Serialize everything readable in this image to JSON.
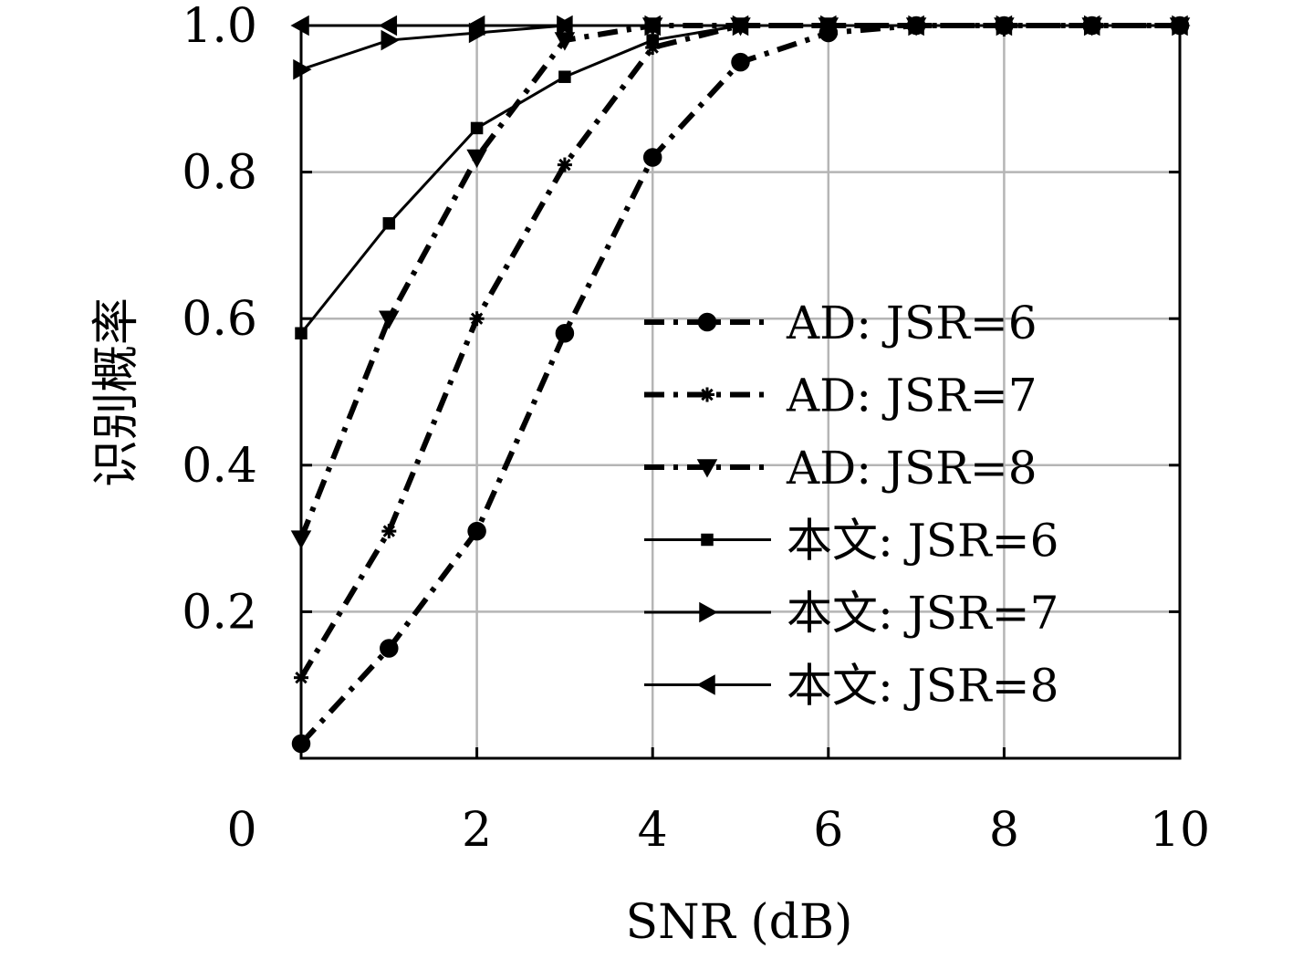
{
  "chart_data": {
    "type": "line",
    "title": "",
    "xlabel": "SNR (dB)",
    "ylabel": "识别概率",
    "xlim": [
      0,
      10
    ],
    "ylim": [
      0,
      1
    ],
    "xticks": [
      "0",
      "2",
      "4",
      "6",
      "8",
      "10"
    ],
    "yticks": [
      "0.2",
      "0.4",
      "0.6",
      "0.8",
      "1.0"
    ],
    "grid": true,
    "legend_position": "right",
    "x": [
      0,
      1,
      2,
      3,
      4,
      5,
      6,
      7,
      8,
      9,
      10
    ],
    "series": [
      {
        "name": "AD: JSR=6",
        "style": "dashdot-thick",
        "marker": "circle",
        "values": [
          0.02,
          0.15,
          0.31,
          0.58,
          0.82,
          0.95,
          0.99,
          1.0,
          1.0,
          1.0,
          1.0
        ]
      },
      {
        "name": "AD: JSR=7",
        "style": "dashdot-thick",
        "marker": "star",
        "values": [
          0.11,
          0.31,
          0.6,
          0.81,
          0.97,
          1.0,
          1.0,
          1.0,
          1.0,
          1.0,
          1.0
        ]
      },
      {
        "name": "AD: JSR=8",
        "style": "dashdot-thick",
        "marker": "triangle-down",
        "values": [
          0.3,
          0.6,
          0.82,
          0.98,
          1.0,
          1.0,
          1.0,
          1.0,
          1.0,
          1.0,
          1.0
        ]
      },
      {
        "name": "本文: JSR=6",
        "style": "solid",
        "marker": "square",
        "values": [
          0.58,
          0.73,
          0.86,
          0.93,
          0.98,
          1.0,
          1.0,
          1.0,
          1.0,
          1.0,
          1.0
        ]
      },
      {
        "name": "本文: JSR=7",
        "style": "solid",
        "marker": "triangle-right",
        "values": [
          0.94,
          0.98,
          0.99,
          1.0,
          1.0,
          1.0,
          1.0,
          1.0,
          1.0,
          1.0,
          1.0
        ]
      },
      {
        "name": "本文: JSR=8",
        "style": "solid",
        "marker": "triangle-left",
        "values": [
          1.0,
          1.0,
          1.0,
          1.0,
          1.0,
          1.0,
          1.0,
          1.0,
          1.0,
          1.0,
          1.0
        ]
      }
    ]
  }
}
